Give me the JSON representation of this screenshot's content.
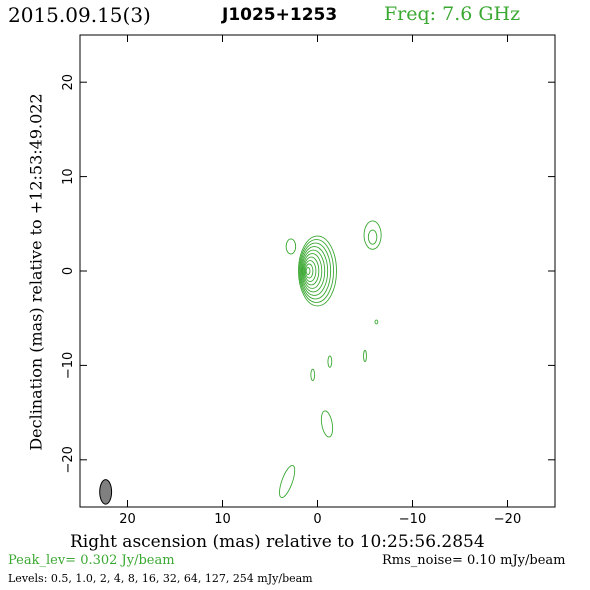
{
  "header": {
    "date": "2015.09.15(3)",
    "source": "J1025+1253",
    "freq": "Freq: 7.6 GHz"
  },
  "footer": {
    "peak": "Peak_lev=  0.302 Jy/beam",
    "rms": "Rms_noise= 0.10 mJy/beam",
    "levels": "Levels: 0.5, 1.0,   2,   4,   8,  16,  32,  64, 127, 254 mJy/beam"
  },
  "colors": {
    "contour": "#3aa832",
    "beam": "#808080"
  },
  "chart_data": {
    "type": "contour",
    "xlabel": "Right ascension (mas) relative to 10:25:56.2854",
    "ylabel": "Declination (mas) relative to +12:53:49.022",
    "xlim": [
      25,
      -25
    ],
    "ylim": [
      -25,
      25
    ],
    "xticks": [
      20,
      10,
      0,
      -10,
      -20
    ],
    "xtick_labels": [
      "20",
      "10",
      "0",
      "−10",
      "−20"
    ],
    "yticks": [
      20,
      10,
      0,
      -10,
      -20
    ],
    "ytick_labels": [
      "20",
      "10",
      "0",
      "−10",
      "−20"
    ],
    "contour_levels_mJy": [
      0.5,
      1.0,
      2,
      4,
      8,
      16,
      32,
      64,
      127,
      254
    ],
    "peak_Jy_per_beam": 0.302,
    "rms_mJy_per_beam": 0.1,
    "core": {
      "x": 0.0,
      "y": 0.0,
      "outer_rx": 2.0,
      "outer_ry": 3.7,
      "n_rings": 10
    },
    "components": [
      {
        "x": 2.8,
        "y": 2.6,
        "rx": 0.5,
        "ry": 0.8
      },
      {
        "x": -5.8,
        "y": 3.8,
        "rx": 0.9,
        "ry": 1.5
      },
      {
        "x": -6.2,
        "y": -5.4,
        "rx": 0.15,
        "ry": 0.2
      },
      {
        "x": -1.3,
        "y": -9.6,
        "rx": 0.2,
        "ry": 0.6
      },
      {
        "x": -5.0,
        "y": -9.0,
        "rx": 0.15,
        "ry": 0.6
      },
      {
        "x": 0.5,
        "y": -11.0,
        "rx": 0.2,
        "ry": 0.6
      },
      {
        "x": -1.0,
        "y": -16.2,
        "rx": 0.55,
        "ry": 1.4
      },
      {
        "x": 3.2,
        "y": -22.3,
        "rx": 0.55,
        "ry": 1.8
      }
    ],
    "beam": {
      "x": 22.3,
      "y": -23.4,
      "major": 2.6,
      "minor": 1.25,
      "pa": 0
    }
  }
}
